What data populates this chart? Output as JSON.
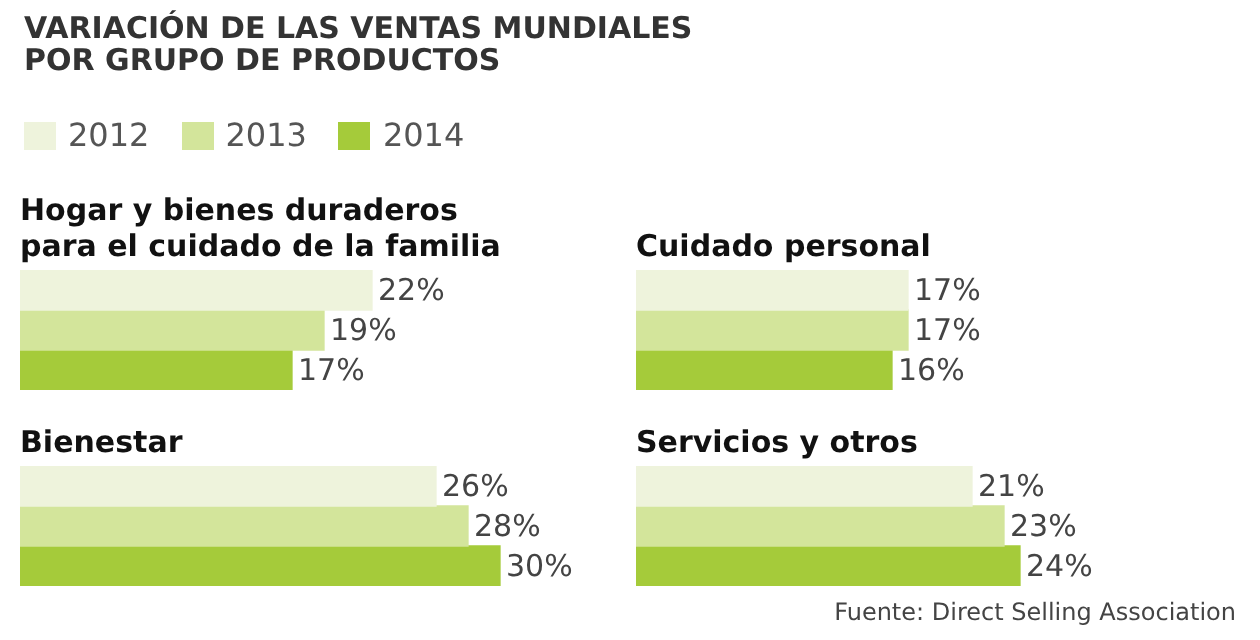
{
  "chart_data": [
    {
      "type": "bar",
      "orientation": "horizontal",
      "title": "VARIACIÓN DE LAS VENTAS MUNDIALES\nPOR GRUPO DE PRODUCTOS",
      "subtitle": "Hogar y bienes duraderos\npara el cuidado de la familia",
      "legend": "top",
      "categories": [
        null
      ],
      "series": [
        {
          "name": "2012",
          "color": "#eef3dc",
          "values": [
            22
          ],
          "value_labels": [
            "22%"
          ]
        },
        {
          "name": "2013",
          "color": "#d3e59b",
          "values": [
            19
          ],
          "value_labels": [
            "19%"
          ]
        },
        {
          "name": "2014",
          "color": "#a5cb3a",
          "values": [
            17
          ],
          "value_labels": [
            "17%"
          ]
        }
      ]
    },
    {
      "type": "bar",
      "orientation": "horizontal",
      "subtitle": "Cuidado personal",
      "categories": [
        null
      ],
      "series": [
        {
          "color": "#eef3dc",
          "values": [
            17
          ],
          "value_labels": [
            "17%"
          ]
        },
        {
          "color": "#d3e59b",
          "values": [
            17
          ],
          "value_labels": [
            "17%"
          ]
        },
        {
          "color": "#a5cb3a",
          "values": [
            16
          ],
          "value_labels": [
            "16%"
          ]
        }
      ]
    },
    {
      "type": "bar",
      "orientation": "horizontal",
      "subtitle": "Bienestar",
      "categories": [
        null
      ],
      "series": [
        {
          "color": "#eef3dc",
          "values": [
            26
          ],
          "value_labels": [
            "26%"
          ]
        },
        {
          "color": "#d3e59b",
          "values": [
            28
          ],
          "value_labels": [
            "28%"
          ]
        },
        {
          "color": "#a5cb3a",
          "values": [
            30
          ],
          "value_labels": [
            "30%"
          ]
        }
      ]
    },
    {
      "type": "bar",
      "orientation": "horizontal",
      "subtitle": "Servicios y otros",
      "categories": [
        null
      ],
      "annotations": [
        "Fuente: Direct Selling Association"
      ],
      "series": [
        {
          "color": "#eef3dc",
          "values": [
            21
          ],
          "value_labels": [
            "21%"
          ]
        },
        {
          "color": "#d3e59b",
          "values": [
            23
          ],
          "value_labels": [
            "23%"
          ]
        },
        {
          "color": "#a5cb3a",
          "values": [
            24
          ],
          "value_labels": [
            "24%"
          ]
        }
      ]
    }
  ]
}
